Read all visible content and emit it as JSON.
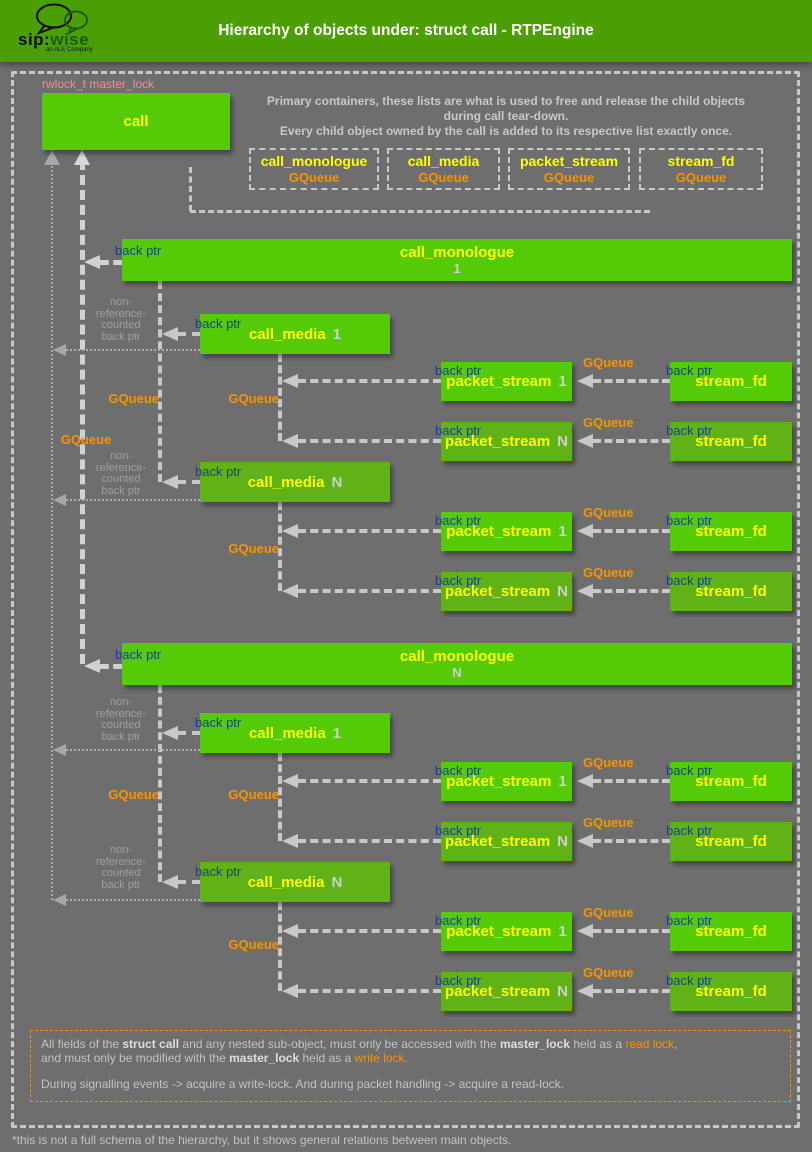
{
  "header": {
    "logo": {
      "brand_sip": "sip:",
      "brand_wise": "wise",
      "tagline": "an ALE Company"
    },
    "title": "Hierarchy of objects under: struct call - RTPEngine"
  },
  "diagram": {
    "master_lock_label": "rwlock_t master_lock",
    "call_box_label": "call",
    "primary_note_lines": [
      "Primary containers, these lists are what is used to free and release the child objects",
      "during call tear-down.",
      "Every child object owned by the call is added to its respective list exactly once."
    ],
    "containers": [
      {
        "name": "call_monologue",
        "type": "GQueue"
      },
      {
        "name": "call_media",
        "type": "GQueue"
      },
      {
        "name": "packet_stream",
        "type": "GQueue"
      },
      {
        "name": "stream_fd",
        "type": "GQueue"
      }
    ],
    "labels": {
      "back_ptr": "back ptr",
      "gqueue": "GQueue",
      "non_ref_lines": [
        "non-",
        "reference-",
        "counted",
        "back ptr"
      ]
    },
    "monologues": [
      {
        "name": "call_monologue",
        "index": "1"
      },
      {
        "name": "call_monologue",
        "index": "N"
      }
    ],
    "media": {
      "name": "call_media",
      "indices": [
        "1",
        "N"
      ]
    },
    "packet": {
      "name": "packet_stream",
      "indices": [
        "1",
        "N"
      ]
    },
    "stream_fd": {
      "name": "stream_fd"
    }
  },
  "note": {
    "line1": [
      {
        "text": "All fields of the "
      },
      {
        "text": "struct call",
        "bold": true
      },
      {
        "text": " and any nested sub-object, must only be accessed with the "
      },
      {
        "text": "master_lock",
        "bold": true
      },
      {
        "text": " held as a "
      },
      {
        "text": "read lock",
        "accent": true
      },
      {
        "text": ","
      }
    ],
    "line2": [
      {
        "text": "and must only be modified with the "
      },
      {
        "text": "master_lock",
        "bold": true
      },
      {
        "text": " held as a "
      },
      {
        "text": "write lock",
        "accent": true
      },
      {
        "text": "."
      }
    ],
    "line3": "During signalling events -> acquire a write-lock. And during packet handling -> acquire a read-lock."
  },
  "footer": {
    "note": "*this is not a full schema of the hierarchy, but it shows general relations between main objects."
  },
  "colors": {
    "background_gray": "#6e6e6e",
    "header_green": "#4b9e04",
    "bright_green": "#55cb07",
    "dark_green": "#60b216",
    "accent_orange": "#f79400",
    "back_ptr_blue": "#16418f",
    "title_yellow": "#ffff00",
    "lock_pink": "#ef9191",
    "dash_gray": "#c8c8c8"
  }
}
